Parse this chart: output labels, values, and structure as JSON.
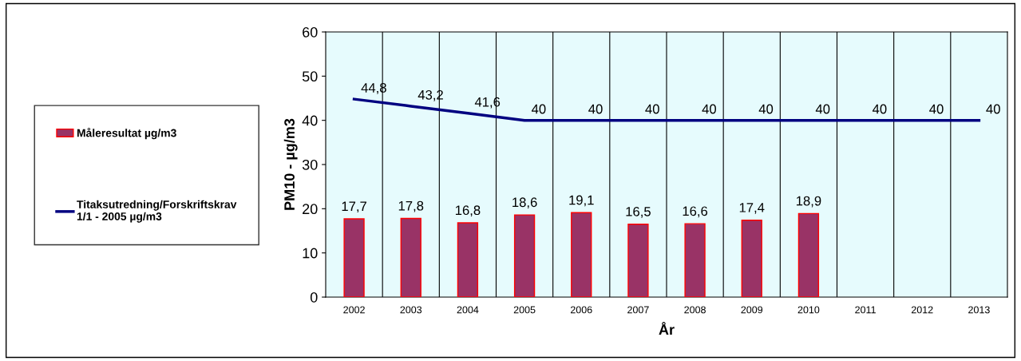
{
  "chart_data": {
    "type": "bar",
    "xlabel": "År",
    "ylabel": "PM10 - µg/m3",
    "categories": [
      "2002",
      "2003",
      "2004",
      "2005",
      "2006",
      "2007",
      "2008",
      "2009",
      "2010",
      "2011",
      "2012",
      "2013"
    ],
    "series": [
      {
        "name": "Måleresultat µg/m3",
        "color": "#993366",
        "values": [
          17.7,
          17.8,
          16.8,
          18.6,
          19.1,
          16.5,
          16.6,
          17.4,
          18.9,
          null,
          null,
          null
        ],
        "value_labels": [
          "17,7",
          "17,8",
          "16,8",
          "18,6",
          "19,1",
          "16,5",
          "16,6",
          "17,4",
          "18,9",
          null,
          null,
          null
        ]
      },
      {
        "name": "Titaksutredning/Forskriftskrav\n1/1 - 2005 µg/m3",
        "type": "line",
        "color": "#000080",
        "values": [
          44.8,
          43.2,
          41.6,
          40,
          40,
          40,
          40,
          40,
          40,
          40,
          40,
          40
        ],
        "value_labels": [
          "44,8",
          "43,2",
          "41,6",
          "40",
          "40",
          "40",
          "40",
          "40",
          "40",
          "40",
          "40",
          "40"
        ]
      }
    ],
    "ylim": [
      0,
      60
    ],
    "yticks": [
      0,
      10,
      20,
      30,
      40,
      50,
      60
    ],
    "grid": "x",
    "legend": "left",
    "marker": "none"
  }
}
